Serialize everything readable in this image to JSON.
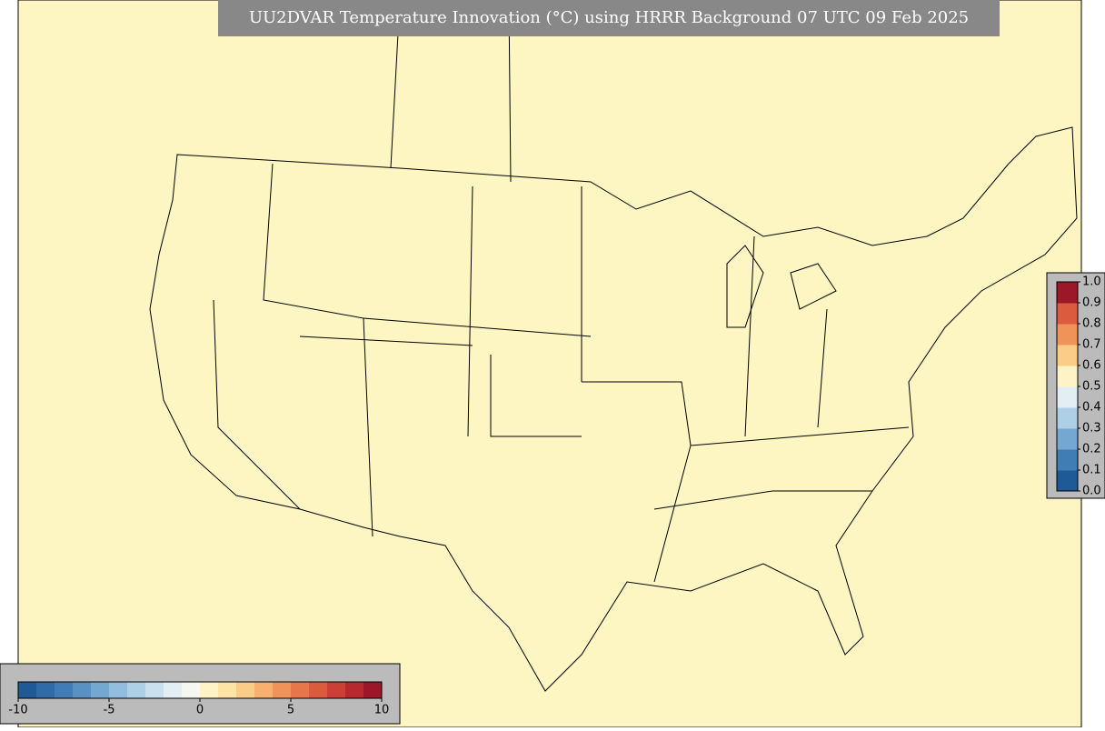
{
  "title": "UU2DVAR Temperature Innovation (°C) using HRRR Background 07 UTC 09 Feb 2025",
  "innovation_colorbar": {
    "range": [
      -10,
      10
    ],
    "ticks": [
      -10,
      -5,
      0,
      5,
      10
    ],
    "colors": [
      "#1f5a96",
      "#2f6ba6",
      "#3f7db4",
      "#5891c2",
      "#74a8d0",
      "#92bddd",
      "#aed0e6",
      "#c9e0ee",
      "#e2eef4",
      "#f5f7f0",
      "#fdf3c6",
      "#fde3a4",
      "#fbcb88",
      "#f7b06e",
      "#f09359",
      "#e7774a",
      "#db5b3f",
      "#cb4036",
      "#b62a2e",
      "#9c1727"
    ]
  },
  "weight_colorbar": {
    "range": [
      0,
      1
    ],
    "ticks": [
      {
        "value": 0,
        "label": "0.0"
      },
      0.1,
      0.2,
      0.3,
      0.4,
      0.5,
      0.6,
      0.7,
      0.8,
      0.9,
      {
        "value": 1,
        "label": "1.0"
      }
    ],
    "colors": [
      "#1f5a96",
      "#3f7db4",
      "#74a8d0",
      "#aed0e6",
      "#e2eef4",
      "#fdf3c6",
      "#fbcb88",
      "#f09359",
      "#db5b3f",
      "#9c1727"
    ]
  }
}
